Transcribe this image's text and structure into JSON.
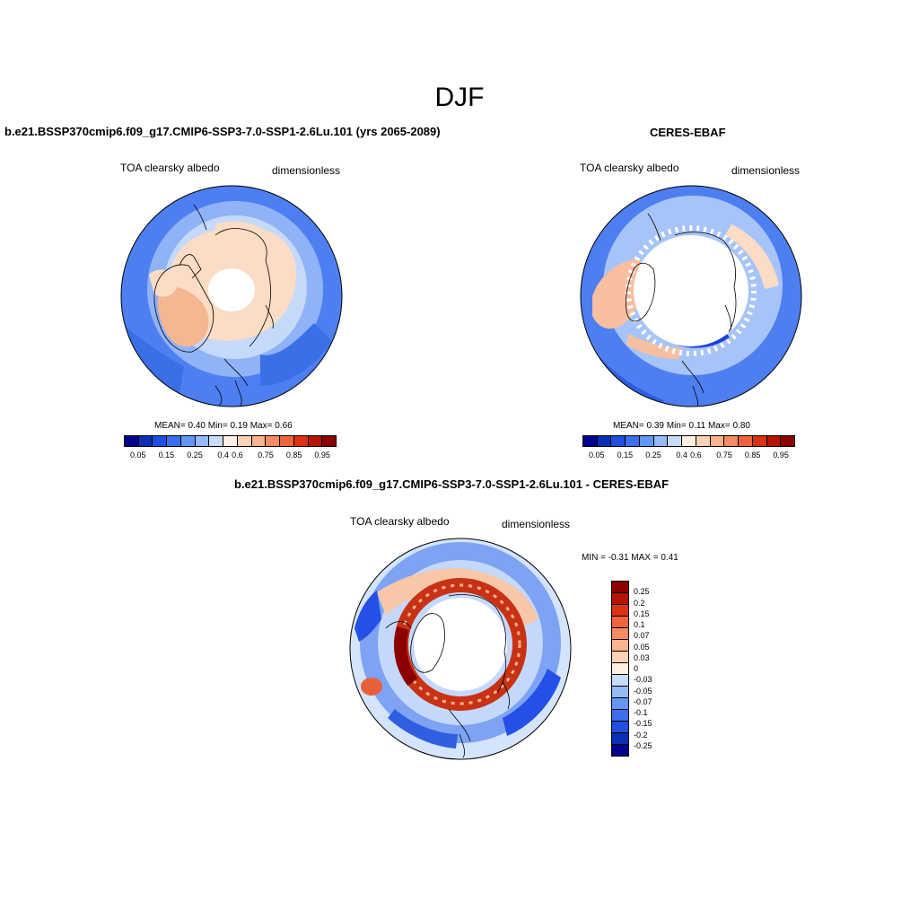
{
  "title": "DJF",
  "panels": {
    "model": {
      "title": "b.e21.BSSP370cmip6.f09_g17.CMIP6-SSP3-7.0-SSP1-2.6Lu.101 (yrs 2065-2089)",
      "variable": "TOA clearsky albedo",
      "units": "dimensionless",
      "stats": "MEAN=   0.40  Min=   0.19  Max=   0.66"
    },
    "obs": {
      "title": "CERES-EBAF",
      "variable": "TOA clearsky albedo",
      "units": "dimensionless",
      "stats": "MEAN=   0.39  Min=   0.11  Max=   0.80"
    },
    "diff": {
      "title": "b.e21.BSSP370cmip6.f09_g17.CMIP6-SSP3-7.0-SSP1-2.6Lu.101 - CERES-EBAF",
      "variable": "TOA clearsky albedo",
      "units": "dimensionless",
      "stats": "MIN =  -0.31 MAX =   0.41"
    }
  },
  "colorbars": {
    "abs": {
      "colors": [
        "#00008c",
        "#0a2fb4",
        "#1e4fe0",
        "#3c6ef0",
        "#6496f5",
        "#96b9f8",
        "#c8dcfc",
        "#fff0e1",
        "#fcd2b4",
        "#fab48c",
        "#f68c64",
        "#f0643c",
        "#dc3214",
        "#b41400",
        "#8c0000"
      ],
      "labels": [
        "0.05",
        "0.15",
        "0.25",
        "0.4",
        "0.6",
        "0.75",
        "0.85",
        "0.95"
      ]
    },
    "diff": {
      "colors": [
        "#8c0000",
        "#b41400",
        "#dc3214",
        "#f0643c",
        "#f68c64",
        "#fab48c",
        "#fcd2b4",
        "#fff0e1",
        "#c8dcfc",
        "#96b9f8",
        "#6496f5",
        "#3c6ef0",
        "#1e4fe0",
        "#0a2fb4",
        "#00008c"
      ],
      "labels": [
        "0.25",
        "0.2",
        "0.15",
        "0.1",
        "0.07",
        "0.05",
        "0.03",
        "0",
        "-0.03",
        "-0.05",
        "-0.07",
        "-0.1",
        "-0.15",
        "-0.2",
        "-0.25"
      ]
    }
  }
}
